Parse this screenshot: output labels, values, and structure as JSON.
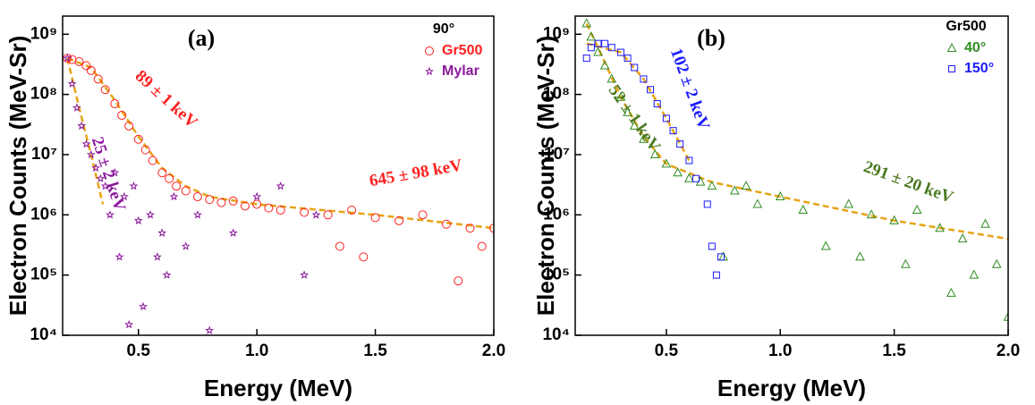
{
  "chart_data": [
    {
      "type": "scatter",
      "panel_label": "(a)",
      "x_label": "Energy (MeV)",
      "y_label": "Electron Counts (MeV-Sr)",
      "log_y": true,
      "xlim": [
        0.18,
        2.0
      ],
      "ylim": [
        10000,
        2000000000
      ],
      "xticks": [
        0.5,
        {
          "value": 1,
          "label": "1.0"
        },
        1.5,
        {
          "value": 2,
          "label": "2.0"
        }
      ],
      "yticks": [
        {
          "value": 10000,
          "label": "10⁴"
        },
        {
          "value": 100000,
          "label": "10⁵"
        },
        {
          "value": 1000000,
          "label": "10⁶"
        },
        {
          "value": 10000000,
          "label": "10⁷"
        },
        {
          "value": 100000000,
          "label": "10⁸"
        },
        {
          "value": 1000000000,
          "label": "10⁹"
        }
      ],
      "legend_title": "90°",
      "legend_position": "upper right",
      "series": [
        {
          "name": "Gr500",
          "color": "#ff2020",
          "marker": "circle",
          "x": [
            0.2,
            0.22,
            0.25,
            0.28,
            0.3,
            0.33,
            0.36,
            0.4,
            0.43,
            0.46,
            0.5,
            0.53,
            0.56,
            0.6,
            0.63,
            0.66,
            0.7,
            0.75,
            0.8,
            0.85,
            0.9,
            0.95,
            1.0,
            1.05,
            1.1,
            1.2,
            1.3,
            1.35,
            1.4,
            1.45,
            1.5,
            1.6,
            1.7,
            1.8,
            1.85,
            1.9,
            1.95,
            2.0
          ],
          "values": [
            400000000,
            380000000,
            350000000,
            300000000,
            250000000,
            180000000,
            120000000,
            70000000,
            45000000,
            30000000,
            18000000,
            12000000,
            8000000,
            5000000,
            4000000,
            3000000,
            2500000,
            2000000,
            1800000,
            1600000,
            1700000,
            1400000,
            1500000,
            1300000,
            1200000,
            1100000,
            1000000,
            300000,
            1200000,
            200000,
            900000,
            800000,
            1000000,
            700000,
            80000,
            600000,
            300000,
            600000
          ]
        },
        {
          "name": "Mylar",
          "color": "#8b1a9b",
          "marker": "star",
          "x": [
            0.2,
            0.22,
            0.24,
            0.26,
            0.28,
            0.3,
            0.32,
            0.34,
            0.36,
            0.38,
            0.4,
            0.42,
            0.44,
            0.46,
            0.48,
            0.5,
            0.52,
            0.55,
            0.58,
            0.6,
            0.62,
            0.65,
            0.7,
            0.75,
            0.8,
            0.9,
            1.0,
            1.1,
            1.2,
            1.25
          ],
          "values": [
            400000000,
            150000000,
            60000000,
            30000000,
            15000000,
            10000000,
            6000000,
            4000000,
            3000000,
            1000000,
            5000000,
            200000,
            2000000,
            15000,
            3000000,
            800000,
            30000,
            1000000,
            200000,
            500000,
            100000,
            2000000,
            300000,
            1000000,
            12000,
            500000,
            2000000,
            3000000,
            100000,
            1000000
          ]
        }
      ],
      "fits": [
        {
          "color": "#e8a317",
          "x": [
            0.2,
            0.3,
            0.4,
            0.5,
            0.6,
            0.7,
            0.8,
            1.0,
            1.5,
            2.0
          ],
          "values": [
            400000000,
            280000000,
            80000000,
            20000000,
            6000000,
            3000000,
            2000000,
            1500000,
            1000000,
            600000
          ]
        },
        {
          "color": "#e8a317",
          "x": [
            0.2,
            0.25,
            0.3,
            0.35
          ],
          "values": [
            400000000,
            60000000,
            10000000,
            1500000
          ]
        }
      ],
      "annotations": [
        {
          "text": "89 ± 1 keV",
          "color": "#ff2020"
        },
        {
          "text": "25 ± 2 keV",
          "color": "#8b1a9b"
        },
        {
          "text": "645 ± 98 keV",
          "color": "#ff2020"
        }
      ]
    },
    {
      "type": "scatter",
      "panel_label": "(b)",
      "x_label": "Energy (MeV)",
      "y_label": "Electron Counts (MeV-Sr)",
      "log_y": true,
      "xlim": [
        0.1,
        2.0
      ],
      "ylim": [
        10000,
        2000000000
      ],
      "xticks": [
        0.5,
        {
          "value": 1,
          "label": "1.0"
        },
        1.5,
        {
          "value": 2,
          "label": "2.0"
        }
      ],
      "yticks": [
        {
          "value": 10000,
          "label": "10⁴"
        },
        {
          "value": 100000,
          "label": "10⁵"
        },
        {
          "value": 1000000,
          "label": "10⁶"
        },
        {
          "value": 10000000,
          "label": "10⁷"
        },
        {
          "value": 100000000,
          "label": "10⁸"
        },
        {
          "value": 1000000000,
          "label": "10⁹"
        }
      ],
      "legend_title": "Gr500",
      "legend_position": "upper right",
      "series": [
        {
          "name": "40°",
          "color": "#2e8b20",
          "marker": "triangle",
          "x": [
            0.15,
            0.17,
            0.2,
            0.23,
            0.26,
            0.3,
            0.33,
            0.36,
            0.4,
            0.45,
            0.5,
            0.55,
            0.6,
            0.65,
            0.7,
            0.75,
            0.8,
            0.85,
            0.9,
            1.0,
            1.1,
            1.2,
            1.3,
            1.35,
            1.4,
            1.5,
            1.55,
            1.6,
            1.7,
            1.75,
            1.8,
            1.85,
            1.9,
            1.95,
            2.0
          ],
          "values": [
            1500000000,
            900000000,
            500000000,
            300000000,
            180000000,
            90000000,
            50000000,
            30000000,
            18000000,
            10000000,
            7000000,
            5000000,
            4000000,
            3500000,
            3000000,
            200000,
            2500000,
            3000000,
            1500000,
            2000000,
            1200000,
            300000,
            1500000,
            200000,
            1000000,
            800000,
            150000,
            1200000,
            600000,
            50000,
            400000,
            100000,
            700000,
            150000,
            20000
          ]
        },
        {
          "name": "150°",
          "color": "#1a1aff",
          "marker": "square",
          "x": [
            0.15,
            0.17,
            0.2,
            0.23,
            0.26,
            0.3,
            0.33,
            0.36,
            0.4,
            0.43,
            0.46,
            0.5,
            0.53,
            0.56,
            0.6,
            0.63,
            0.68,
            0.7,
            0.72,
            0.74
          ],
          "values": [
            400000000,
            600000000,
            700000000,
            700000000,
            600000000,
            500000000,
            400000000,
            280000000,
            180000000,
            120000000,
            70000000,
            40000000,
            25000000,
            15000000,
            8000000,
            4000000,
            1500000,
            300000,
            100000,
            200000
          ]
        }
      ],
      "fits": [
        {
          "color": "#e8a317",
          "x": [
            0.15,
            0.2,
            0.3,
            0.4,
            0.5,
            0.7,
            1.0,
            1.5,
            2.0
          ],
          "values": [
            1500000000,
            600000000,
            90000000,
            20000000,
            7000000,
            3500000,
            2000000,
            800000,
            400000
          ]
        },
        {
          "color": "#e8a317",
          "x": [
            0.15,
            0.3,
            0.4,
            0.5,
            0.6
          ],
          "values": [
            700000000,
            500000000,
            180000000,
            40000000,
            8000000
          ]
        }
      ],
      "annotations": [
        {
          "text": "102 ± 2 keV",
          "color": "#1a1aff"
        },
        {
          "text": "52 ± 1 keV",
          "color": "#4a7a20"
        },
        {
          "text": "291 ± 20 keV",
          "color": "#4a7a20"
        }
      ]
    }
  ]
}
